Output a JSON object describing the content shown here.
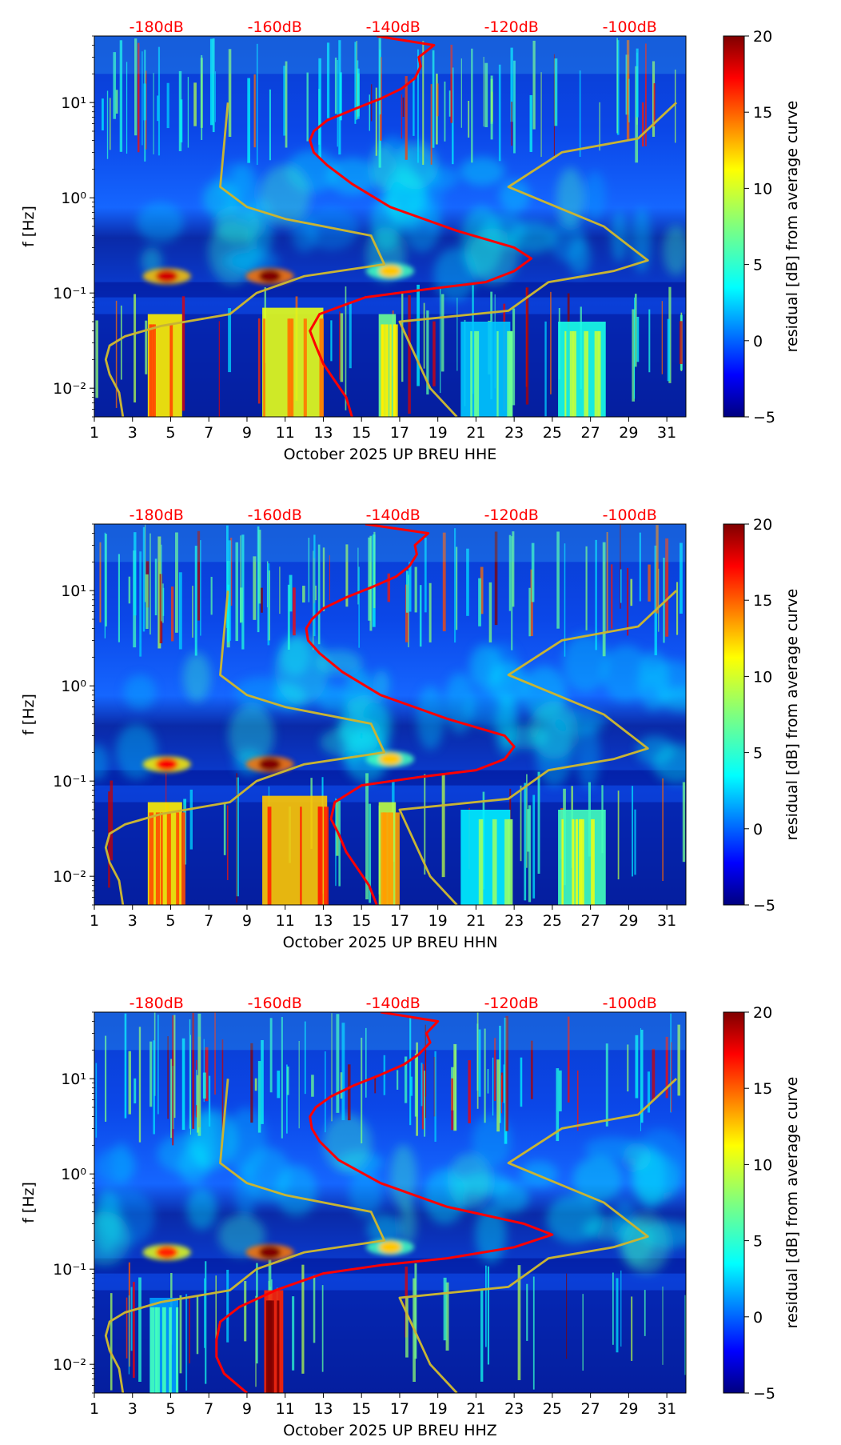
{
  "chart_data": [
    {
      "type": "heatmap",
      "channel": "HHE",
      "xlabel": "October 2025 UP BREU  HHE",
      "ylabel": "f [Hz]",
      "xlim": [
        1,
        32
      ],
      "ylim": [
        0.005,
        50
      ],
      "yscale": "log",
      "x_ticks": [
        "1",
        "3",
        "5",
        "7",
        "9",
        "11",
        "13",
        "15",
        "17",
        "19",
        "21",
        "23",
        "25",
        "27",
        "29",
        "31"
      ],
      "y_ticks": [
        {
          "label": "10⁻²",
          "value": 0.01
        },
        {
          "label": "10⁻¹",
          "value": 0.1
        },
        {
          "label": "10⁰",
          "value": 1
        },
        {
          "label": "10¹",
          "value": 10
        }
      ],
      "top_labels": [
        "-180dB",
        "-160dB",
        "-140dB",
        "-120dB",
        "-100dB"
      ],
      "colorbar": {
        "label": "residual [dB] from average curve",
        "min": -5,
        "max": 20,
        "ticks": [
          "20",
          "15",
          "10",
          "5",
          "0",
          "−5"
        ]
      },
      "hot_bands": [
        {
          "x": [
            3.8,
            5.6
          ],
          "ylo": 0.005,
          "yhi": 0.06,
          "level": 15
        },
        {
          "x": [
            9.8,
            13.0
          ],
          "ylo": 0.005,
          "yhi": 0.07,
          "level": 14
        },
        {
          "x": [
            15.9,
            16.8
          ],
          "ylo": 0.005,
          "yhi": 0.06,
          "level": 11
        },
        {
          "x": [
            25.3,
            27.8
          ],
          "ylo": 0.005,
          "yhi": 0.05,
          "level": 9
        },
        {
          "x": [
            20.2,
            22.8
          ],
          "ylo": 0.005,
          "yhi": 0.05,
          "level": 7
        }
      ],
      "blobs": [
        {
          "x": 4.8,
          "y": 0.15,
          "level": 18
        },
        {
          "x": 10.2,
          "y": 0.15,
          "level": 20
        },
        {
          "x": 16.5,
          "y": 0.17,
          "level": 12
        }
      ],
      "series": [
        {
          "name": "red noise curve",
          "color": "#ff0000",
          "x": [
            14.5,
            14.2,
            13.6,
            13.0,
            12.6,
            12.3,
            12.8,
            15.2,
            18.5,
            21.5,
            23.0,
            23.9,
            23.0,
            20.0,
            16.5,
            14.5,
            13.2,
            12.5,
            12.3,
            12.5,
            13.2,
            14.6,
            16.0,
            17.1,
            17.8,
            18.1,
            18.0,
            18.8,
            15.8
          ],
          "y": [
            0.005,
            0.008,
            0.012,
            0.018,
            0.028,
            0.04,
            0.06,
            0.09,
            0.11,
            0.13,
            0.17,
            0.23,
            0.3,
            0.45,
            0.8,
            1.4,
            2.2,
            3.0,
            4.0,
            5.0,
            6.5,
            8.5,
            11.0,
            14.0,
            18.0,
            24.0,
            30.0,
            40.0,
            50.0
          ]
        },
        {
          "name": "gold model curve",
          "color": "#c8b434",
          "x": [
            2.5,
            2.3,
            1.8,
            1.6,
            1.8,
            2.6,
            4.5,
            8.1,
            9.5,
            12.0,
            16.2,
            15.5,
            11.0,
            9.0,
            7.6,
            8.0
          ],
          "y": [
            0.005,
            0.009,
            0.014,
            0.02,
            0.028,
            0.035,
            0.045,
            0.06,
            0.1,
            0.15,
            0.2,
            0.4,
            0.6,
            0.8,
            1.3,
            10
          ]
        },
        {
          "name": "gold model curve 2",
          "color": "#c8b434",
          "x": [
            20.0,
            18.6,
            17.0,
            22.7,
            24.8,
            28.2,
            30.0,
            27.7,
            22.7,
            25.5,
            29.5,
            31.5
          ],
          "y": [
            0.005,
            0.01,
            0.05,
            0.065,
            0.13,
            0.17,
            0.22,
            0.5,
            1.3,
            3.0,
            4.2,
            10
          ]
        }
      ]
    },
    {
      "type": "heatmap",
      "channel": "HHN",
      "xlabel": "October 2025 UP BREU  HHN",
      "ylabel": "f [Hz]",
      "xlim": [
        1,
        32
      ],
      "ylim": [
        0.005,
        50
      ],
      "yscale": "log",
      "x_ticks": [
        "1",
        "3",
        "5",
        "7",
        "9",
        "11",
        "13",
        "15",
        "17",
        "19",
        "21",
        "23",
        "25",
        "27",
        "29",
        "31"
      ],
      "y_ticks": [
        {
          "label": "10⁻²",
          "value": 0.01
        },
        {
          "label": "10⁻¹",
          "value": 0.1
        },
        {
          "label": "10⁰",
          "value": 1
        },
        {
          "label": "10¹",
          "value": 10
        }
      ],
      "top_labels": [
        "-180dB",
        "-160dB",
        "-140dB",
        "-120dB",
        "-100dB"
      ],
      "colorbar": {
        "label": "residual [dB] from average curve",
        "min": -5,
        "max": 20,
        "ticks": [
          "20",
          "15",
          "10",
          "5",
          "0",
          "−5"
        ]
      },
      "hot_bands": [
        {
          "x": [
            3.8,
            5.6
          ],
          "ylo": 0.005,
          "yhi": 0.06,
          "level": 15
        },
        {
          "x": [
            9.8,
            13.2
          ],
          "ylo": 0.005,
          "yhi": 0.07,
          "level": 16
        },
        {
          "x": [
            15.9,
            16.8
          ],
          "ylo": 0.005,
          "yhi": 0.06,
          "level": 13
        },
        {
          "x": [
            25.3,
            27.8
          ],
          "ylo": 0.005,
          "yhi": 0.05,
          "level": 10
        },
        {
          "x": [
            20.2,
            22.8
          ],
          "ylo": 0.005,
          "yhi": 0.05,
          "level": 8
        }
      ],
      "blobs": [
        {
          "x": 4.8,
          "y": 0.15,
          "level": 17
        },
        {
          "x": 10.2,
          "y": 0.15,
          "level": 20
        },
        {
          "x": 16.5,
          "y": 0.17,
          "level": 12
        }
      ],
      "series": [
        {
          "name": "red noise curve",
          "color": "#ff0000",
          "x": [
            15.8,
            15.4,
            14.8,
            14.2,
            13.8,
            13.4,
            13.6,
            15.0,
            18.0,
            21.0,
            22.5,
            23.0,
            22.5,
            19.5,
            16.0,
            14.0,
            12.8,
            12.2,
            12.1,
            12.4,
            13.0,
            14.2,
            15.6,
            16.8,
            17.5,
            17.9,
            17.8,
            18.5,
            15.2
          ],
          "y": [
            0.005,
            0.008,
            0.012,
            0.018,
            0.028,
            0.04,
            0.06,
            0.09,
            0.11,
            0.13,
            0.17,
            0.23,
            0.3,
            0.45,
            0.8,
            1.4,
            2.2,
            3.0,
            4.0,
            5.0,
            6.5,
            8.5,
            11.0,
            14.0,
            18.0,
            24.0,
            30.0,
            40.0,
            50.0
          ]
        },
        {
          "name": "gold model curve",
          "color": "#c8b434",
          "x": [
            2.5,
            2.3,
            1.8,
            1.6,
            1.8,
            2.6,
            4.5,
            8.1,
            9.5,
            12.0,
            16.2,
            15.5,
            11.0,
            9.0,
            7.6,
            8.0
          ],
          "y": [
            0.005,
            0.009,
            0.014,
            0.02,
            0.028,
            0.035,
            0.045,
            0.06,
            0.1,
            0.15,
            0.2,
            0.4,
            0.6,
            0.8,
            1.3,
            10
          ]
        },
        {
          "name": "gold model curve 2",
          "color": "#c8b434",
          "x": [
            20.0,
            18.6,
            17.0,
            22.7,
            24.8,
            28.2,
            30.0,
            27.7,
            22.7,
            25.5,
            29.5,
            31.5
          ],
          "y": [
            0.005,
            0.01,
            0.05,
            0.065,
            0.13,
            0.17,
            0.22,
            0.5,
            1.3,
            3.0,
            4.2,
            10
          ]
        }
      ]
    },
    {
      "type": "heatmap",
      "channel": "HHZ",
      "xlabel": "October 2025 UP BREU  HHZ",
      "ylabel": "f [Hz]",
      "xlim": [
        1,
        32
      ],
      "ylim": [
        0.005,
        50
      ],
      "yscale": "log",
      "x_ticks": [
        "1",
        "3",
        "5",
        "7",
        "9",
        "11",
        "13",
        "15",
        "17",
        "19",
        "21",
        "23",
        "25",
        "27",
        "29",
        "31"
      ],
      "y_ticks": [
        {
          "label": "10⁻²",
          "value": 0.01
        },
        {
          "label": "10⁻¹",
          "value": 0.1
        },
        {
          "label": "10⁰",
          "value": 1
        },
        {
          "label": "10¹",
          "value": 10
        }
      ],
      "top_labels": [
        "-180dB",
        "-160dB",
        "-140dB",
        "-120dB",
        "-100dB"
      ],
      "colorbar": {
        "label": "residual [dB] from average curve",
        "min": -5,
        "max": 20,
        "ticks": [
          "20",
          "15",
          "10",
          "5",
          "0",
          "−5"
        ]
      },
      "hot_bands": [
        {
          "x": [
            9.9,
            10.9
          ],
          "ylo": 0.005,
          "yhi": 0.06,
          "level": 20
        },
        {
          "x": [
            3.9,
            5.4
          ],
          "ylo": 0.005,
          "yhi": 0.05,
          "level": 6
        }
      ],
      "blobs": [
        {
          "x": 4.8,
          "y": 0.15,
          "level": 16
        },
        {
          "x": 10.2,
          "y": 0.15,
          "level": 20
        },
        {
          "x": 16.5,
          "y": 0.17,
          "level": 12
        }
      ],
      "series": [
        {
          "name": "red noise curve",
          "color": "#ff0000",
          "x": [
            9.0,
            7.8,
            7.4,
            7.4,
            7.6,
            8.6,
            10.5,
            13.0,
            16.0,
            19.5,
            23.0,
            25.0,
            23.5,
            19.5,
            16.0,
            13.8,
            12.8,
            12.4,
            12.3,
            12.6,
            13.4,
            14.6,
            16.0,
            17.2,
            18.0,
            18.6,
            18.4,
            19.0,
            16.0
          ],
          "y": [
            0.005,
            0.008,
            0.012,
            0.018,
            0.028,
            0.04,
            0.06,
            0.09,
            0.11,
            0.13,
            0.17,
            0.23,
            0.3,
            0.45,
            0.8,
            1.4,
            2.2,
            3.0,
            4.0,
            5.0,
            6.5,
            8.5,
            11.0,
            14.0,
            18.0,
            24.0,
            30.0,
            40.0,
            50.0
          ]
        },
        {
          "name": "gold model curve",
          "color": "#c8b434",
          "x": [
            2.5,
            2.3,
            1.8,
            1.6,
            1.8,
            2.6,
            4.5,
            8.1,
            9.5,
            12.0,
            16.2,
            15.5,
            11.0,
            9.0,
            7.6,
            8.0
          ],
          "y": [
            0.005,
            0.009,
            0.014,
            0.02,
            0.028,
            0.035,
            0.045,
            0.06,
            0.1,
            0.15,
            0.2,
            0.4,
            0.6,
            0.8,
            1.3,
            10
          ]
        },
        {
          "name": "gold model curve 2",
          "color": "#c8b434",
          "x": [
            20.0,
            18.6,
            17.0,
            22.7,
            24.8,
            28.2,
            30.0,
            27.7,
            22.7,
            25.5,
            29.5,
            31.5
          ],
          "y": [
            0.005,
            0.01,
            0.05,
            0.065,
            0.13,
            0.17,
            0.22,
            0.5,
            1.3,
            3.0,
            4.2,
            10
          ]
        }
      ]
    }
  ]
}
